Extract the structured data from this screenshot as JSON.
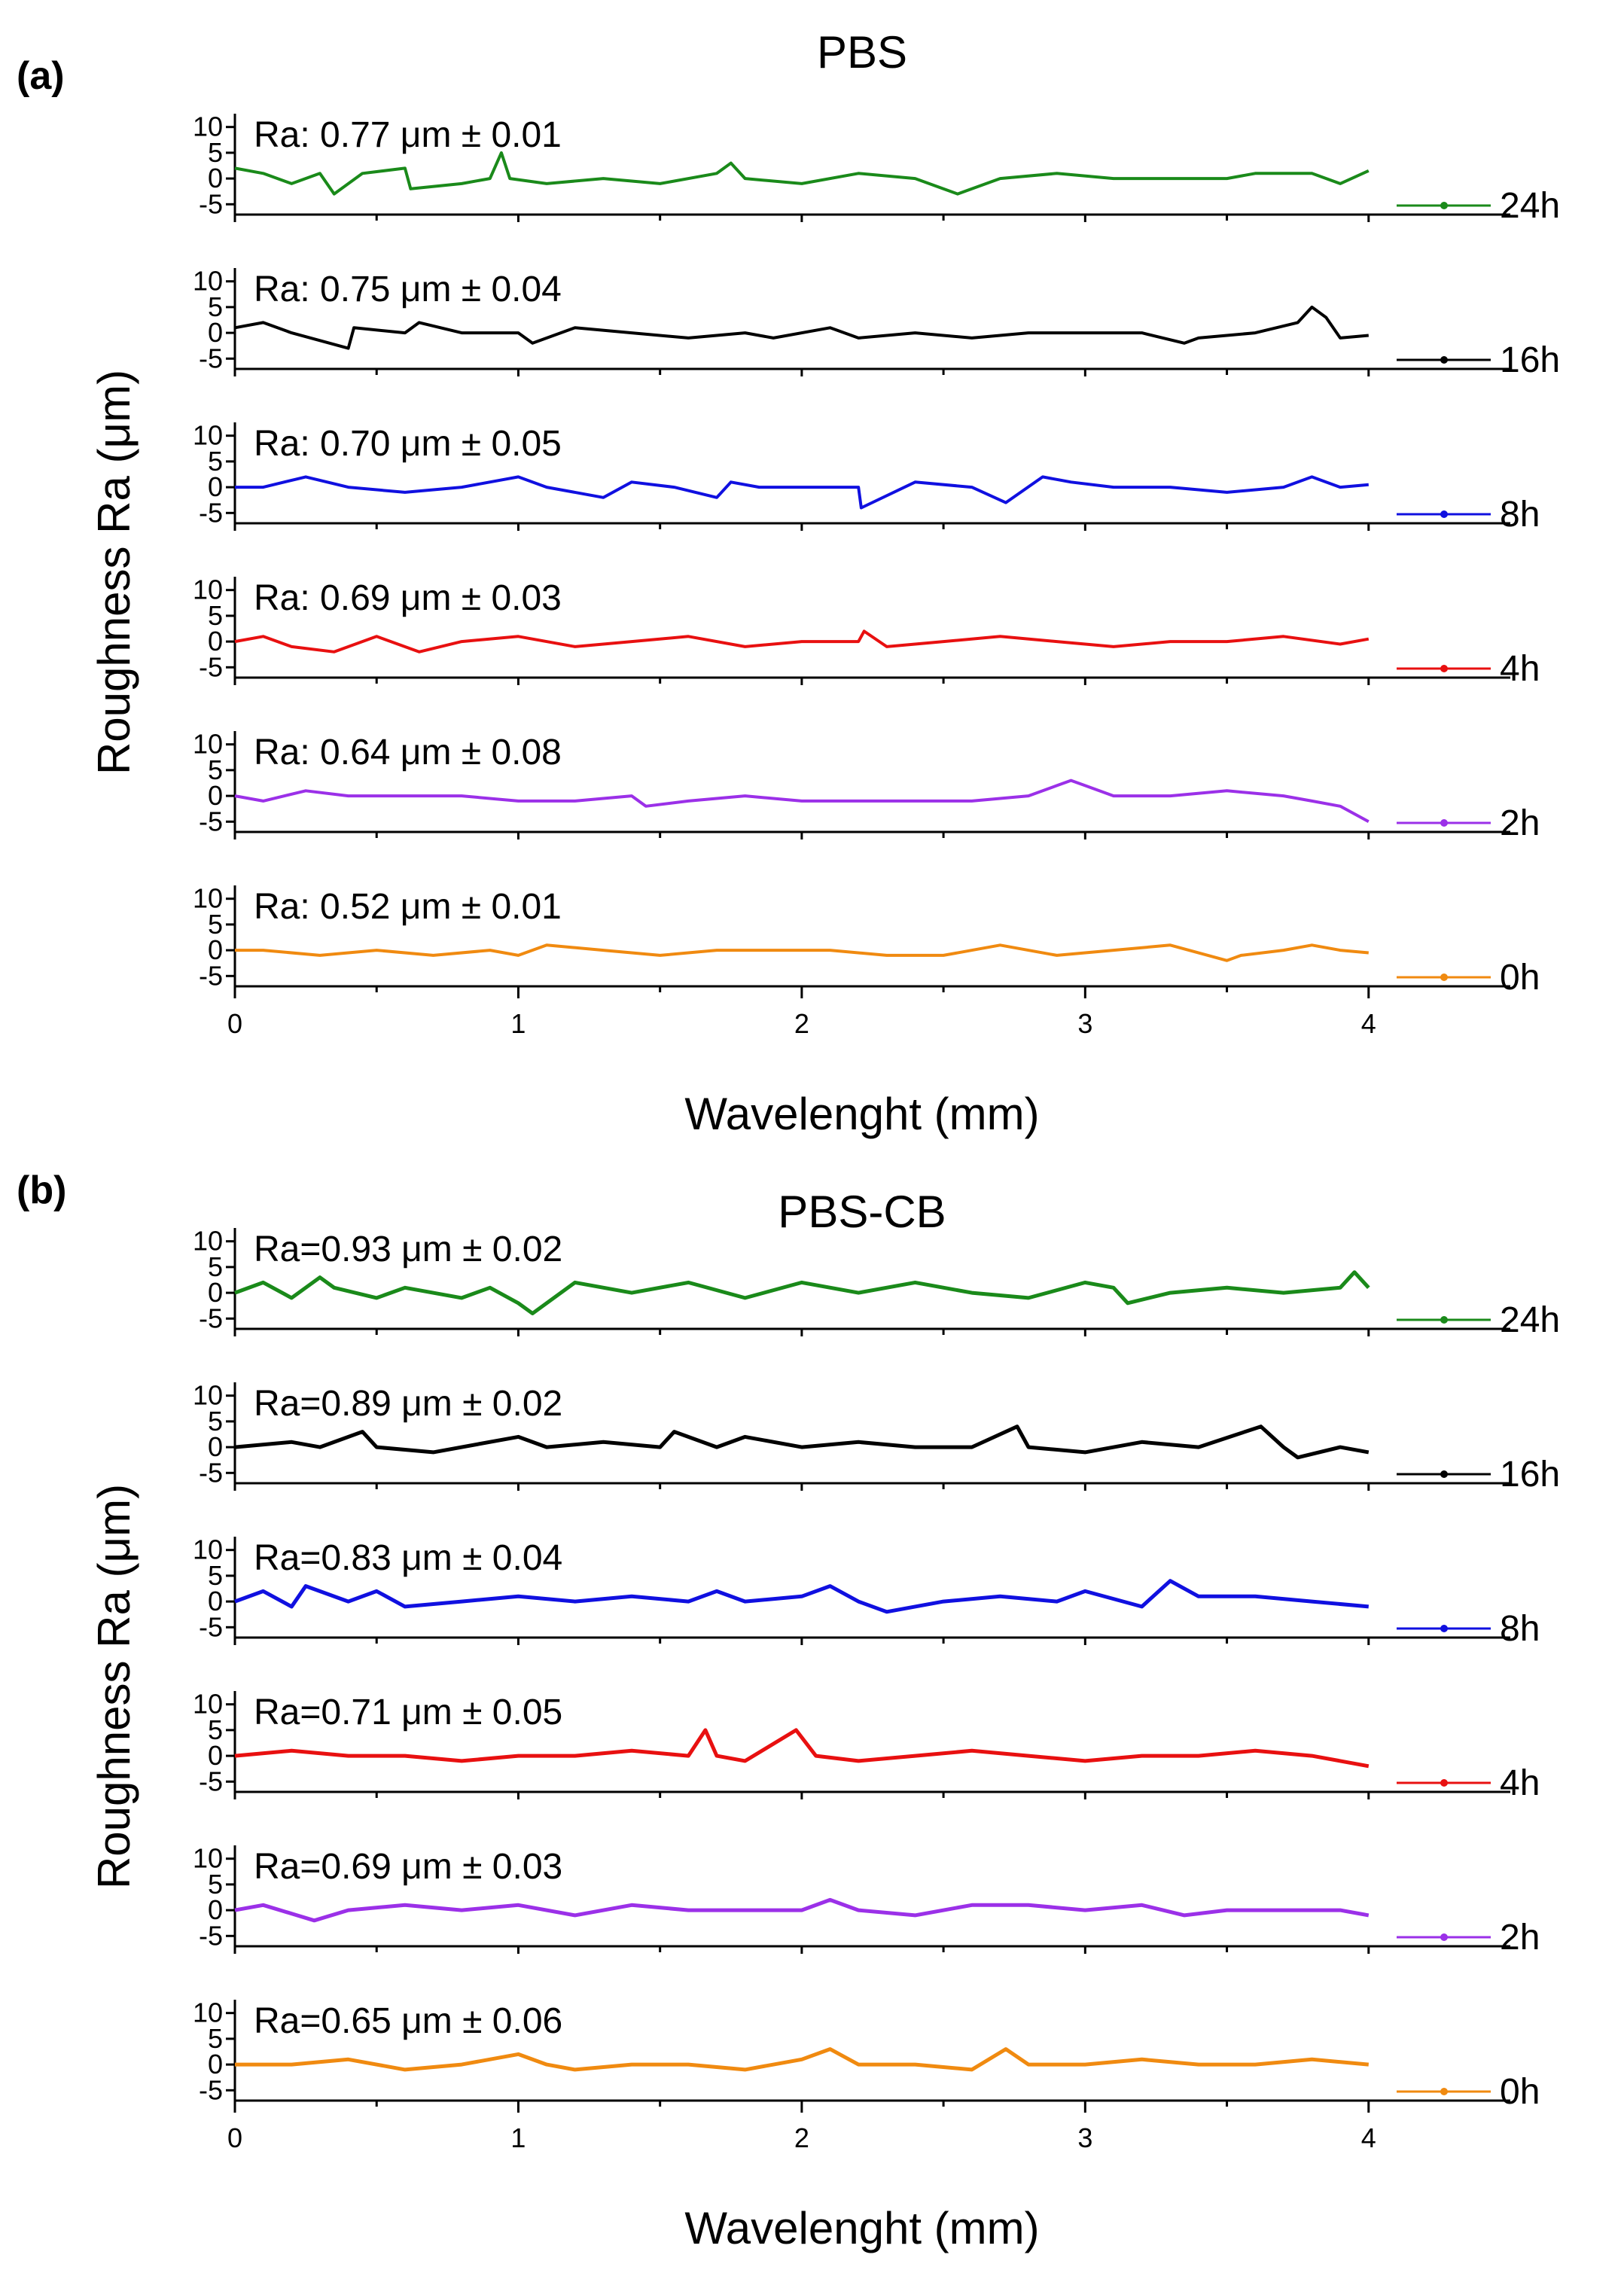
{
  "chart_data": [
    {
      "type": "line",
      "panel_label": "(a)",
      "title": "PBS",
      "xlabel": "Wavelenght (mm)",
      "ylabel": "Roughness Ra (μm)",
      "xlim": [
        0,
        4.5
      ],
      "x_ticks": [
        "0",
        "1",
        "2",
        "3",
        "4"
      ],
      "ylim": [
        -7,
        12
      ],
      "y_ticks": [
        "10",
        "5",
        "0",
        "-5"
      ],
      "series": [
        {
          "name": "24h",
          "ra_label": "Ra: 0.77 μm ± 0.01",
          "color": "#1a8a1a",
          "x": [
            0,
            0.1,
            0.2,
            0.3,
            0.35,
            0.45,
            0.6,
            0.62,
            0.8,
            0.9,
            0.94,
            0.97,
            1.1,
            1.3,
            1.5,
            1.7,
            1.75,
            1.8,
            2.0,
            2.2,
            2.4,
            2.55,
            2.7,
            2.9,
            3.1,
            3.3,
            3.5,
            3.6,
            3.8,
            3.9,
            4.0
          ],
          "y": [
            2,
            1,
            -1,
            1,
            -3,
            1,
            2,
            -2,
            -1,
            0,
            5,
            0,
            -1,
            0,
            -1,
            1,
            3,
            0,
            -1,
            1,
            0,
            -3,
            0,
            1,
            0,
            0,
            0,
            1,
            1,
            -1,
            1.5
          ]
        },
        {
          "name": "16h",
          "ra_label": "Ra: 0.75 μm ± 0.04",
          "color": "#000000",
          "x": [
            0,
            0.1,
            0.2,
            0.4,
            0.42,
            0.6,
            0.65,
            0.8,
            1.0,
            1.05,
            1.2,
            1.4,
            1.6,
            1.8,
            1.9,
            2.1,
            2.2,
            2.4,
            2.6,
            2.8,
            3.0,
            3.2,
            3.35,
            3.4,
            3.6,
            3.75,
            3.8,
            3.85,
            3.9,
            4.0
          ],
          "y": [
            1,
            2,
            0,
            -3,
            1,
            0,
            2,
            0,
            0,
            -2,
            1,
            0,
            -1,
            0,
            -1,
            1,
            -1,
            0,
            -1,
            0,
            0,
            0,
            -2,
            -1,
            0,
            2,
            5,
            3,
            -1,
            -0.5
          ]
        },
        {
          "name": "8h",
          "ra_label": "Ra: 0.70 μm ± 0.05",
          "color": "#1010e0",
          "x": [
            0,
            0.1,
            0.25,
            0.4,
            0.6,
            0.8,
            1.0,
            1.1,
            1.3,
            1.4,
            1.55,
            1.7,
            1.75,
            1.85,
            2.0,
            2.2,
            2.21,
            2.4,
            2.6,
            2.72,
            2.85,
            2.95,
            3.1,
            3.3,
            3.5,
            3.7,
            3.8,
            3.9,
            4.0
          ],
          "y": [
            0,
            0,
            2,
            0,
            -1,
            0,
            2,
            0,
            -2,
            1,
            0,
            -2,
            1,
            0,
            0,
            0,
            -4,
            1,
            0,
            -3,
            2,
            1,
            0,
            0,
            -1,
            0,
            2,
            0,
            0.5
          ]
        },
        {
          "name": "4h",
          "ra_label": "Ra: 0.69 μm ± 0.03",
          "color": "#e81010",
          "x": [
            0,
            0.1,
            0.2,
            0.35,
            0.5,
            0.65,
            0.8,
            1.0,
            1.2,
            1.4,
            1.6,
            1.8,
            2.0,
            2.2,
            2.22,
            2.3,
            2.5,
            2.7,
            2.9,
            3.1,
            3.3,
            3.5,
            3.7,
            3.9,
            4.0
          ],
          "y": [
            0,
            1,
            -1,
            -2,
            1,
            -2,
            0,
            1,
            -1,
            0,
            1,
            -1,
            0,
            0,
            2,
            -1,
            0,
            1,
            0,
            -1,
            0,
            0,
            1,
            -0.5,
            0.5
          ]
        },
        {
          "name": "2h",
          "ra_label": "Ra: 0.64 μm ± 0.08",
          "color": "#9b30e8",
          "x": [
            0,
            0.1,
            0.25,
            0.4,
            0.6,
            0.8,
            1.0,
            1.2,
            1.4,
            1.45,
            1.6,
            1.8,
            2.0,
            2.2,
            2.4,
            2.6,
            2.8,
            2.9,
            2.95,
            3.0,
            3.1,
            3.3,
            3.5,
            3.7,
            3.8,
            3.9,
            4.0
          ],
          "y": [
            0,
            -1,
            1,
            0,
            0,
            0,
            -1,
            -1,
            0,
            -2,
            -1,
            0,
            -1,
            -1,
            -1,
            -1,
            0,
            2,
            3,
            2,
            0,
            0,
            1,
            0,
            -1,
            -2,
            -5
          ]
        },
        {
          "name": "0h",
          "ra_label": "Ra: 0.52 μm ± 0.01",
          "color": "#f08a10",
          "x": [
            0,
            0.1,
            0.3,
            0.5,
            0.7,
            0.9,
            1.0,
            1.1,
            1.3,
            1.5,
            1.7,
            1.9,
            2.1,
            2.3,
            2.5,
            2.7,
            2.9,
            3.1,
            3.3,
            3.5,
            3.55,
            3.7,
            3.8,
            3.9,
            4.0
          ],
          "y": [
            0,
            0,
            -1,
            0,
            -1,
            0,
            -1,
            1,
            0,
            -1,
            0,
            0,
            0,
            -1,
            -1,
            1,
            -1,
            0,
            1,
            -2,
            -1,
            0,
            1,
            0,
            -0.5
          ]
        }
      ],
      "legend_placement": "right"
    },
    {
      "type": "line",
      "panel_label": "(b)",
      "title": "PBS-CB",
      "xlabel": "Wavelenght (mm)",
      "ylabel": "Roughness Ra (μm)",
      "xlim": [
        0,
        4.5
      ],
      "x_ticks": [
        "0",
        "1",
        "2",
        "3",
        "4"
      ],
      "ylim": [
        -7,
        12
      ],
      "y_ticks": [
        "10",
        "5",
        "0",
        "-5"
      ],
      "series": [
        {
          "name": "24h",
          "ra_label": "Ra=0.93 μm ± 0.02",
          "color": "#1a8a1a",
          "x": [
            0,
            0.1,
            0.2,
            0.3,
            0.35,
            0.5,
            0.6,
            0.8,
            0.9,
            1.0,
            1.05,
            1.2,
            1.4,
            1.6,
            1.8,
            2.0,
            2.2,
            2.4,
            2.6,
            2.8,
            3.0,
            3.1,
            3.15,
            3.3,
            3.5,
            3.7,
            3.9,
            3.95,
            4.0
          ],
          "y": [
            0,
            2,
            -1,
            3,
            1,
            -1,
            1,
            -1,
            1,
            -2,
            -4,
            2,
            0,
            2,
            -1,
            2,
            0,
            2,
            0,
            -1,
            2,
            1,
            -2,
            0,
            1,
            0,
            1,
            4,
            1
          ]
        },
        {
          "name": "16h",
          "ra_label": "Ra=0.89 μm ± 0.02",
          "color": "#000000",
          "x": [
            0,
            0.2,
            0.3,
            0.45,
            0.5,
            0.7,
            1.0,
            1.1,
            1.3,
            1.5,
            1.55,
            1.7,
            1.8,
            2.0,
            2.2,
            2.4,
            2.6,
            2.76,
            2.8,
            3.0,
            3.2,
            3.4,
            3.62,
            3.7,
            3.75,
            3.9,
            4.0
          ],
          "y": [
            0,
            1,
            0,
            3,
            0,
            -1,
            2,
            0,
            1,
            0,
            3,
            0,
            2,
            0,
            1,
            0,
            0,
            4,
            0,
            -1,
            1,
            0,
            4,
            0,
            -2,
            0,
            -1
          ]
        },
        {
          "name": "8h",
          "ra_label": "Ra=0.83 μm ± 0.04",
          "color": "#1010e0",
          "x": [
            0,
            0.1,
            0.2,
            0.25,
            0.4,
            0.5,
            0.6,
            0.8,
            1.0,
            1.2,
            1.4,
            1.6,
            1.7,
            1.8,
            2.0,
            2.1,
            2.2,
            2.3,
            2.5,
            2.7,
            2.9,
            3.0,
            3.2,
            3.3,
            3.4,
            3.6,
            3.8,
            4.0
          ],
          "y": [
            0,
            2,
            -1,
            3,
            0,
            2,
            -1,
            0,
            1,
            0,
            1,
            0,
            2,
            0,
            1,
            3,
            0,
            -2,
            0,
            1,
            0,
            2,
            -1,
            4,
            1,
            1,
            0,
            -1
          ]
        },
        {
          "name": "4h",
          "ra_label": "Ra=0.71 μm ± 0.05",
          "color": "#e81010",
          "x": [
            0,
            0.2,
            0.4,
            0.6,
            0.8,
            1.0,
            1.2,
            1.4,
            1.6,
            1.66,
            1.7,
            1.8,
            1.98,
            2.05,
            2.2,
            2.4,
            2.6,
            2.8,
            3.0,
            3.2,
            3.4,
            3.6,
            3.8,
            3.9,
            4.0
          ],
          "y": [
            0,
            1,
            0,
            0,
            -1,
            0,
            0,
            1,
            0,
            5,
            0,
            -1,
            5,
            0,
            -1,
            0,
            1,
            0,
            -1,
            0,
            0,
            1,
            0,
            -1,
            -2
          ]
        },
        {
          "name": "2h",
          "ra_label": "Ra=0.69 μm ± 0.03",
          "color": "#9b30e8",
          "x": [
            0,
            0.1,
            0.28,
            0.4,
            0.6,
            0.8,
            1.0,
            1.2,
            1.4,
            1.6,
            1.8,
            2.0,
            2.1,
            2.2,
            2.4,
            2.6,
            2.8,
            3.0,
            3.2,
            3.35,
            3.5,
            3.7,
            3.9,
            4.0
          ],
          "y": [
            0,
            1,
            -2,
            0,
            1,
            0,
            1,
            -1,
            1,
            0,
            0,
            0,
            2,
            0,
            -1,
            1,
            1,
            0,
            1,
            -1,
            0,
            0,
            0,
            -1
          ]
        },
        {
          "name": "0h",
          "ra_label": "Ra=0.65 μm ± 0.06",
          "color": "#f08a10",
          "x": [
            0,
            0.2,
            0.4,
            0.6,
            0.8,
            1.0,
            1.1,
            1.2,
            1.4,
            1.6,
            1.8,
            2.0,
            2.1,
            2.2,
            2.4,
            2.6,
            2.72,
            2.8,
            3.0,
            3.2,
            3.4,
            3.6,
            3.8,
            4.0
          ],
          "y": [
            0,
            0,
            1,
            -1,
            0,
            2,
            0,
            -1,
            0,
            0,
            -1,
            1,
            3,
            0,
            0,
            -1,
            3,
            0,
            0,
            1,
            0,
            0,
            1,
            0
          ]
        }
      ],
      "legend_placement": "right"
    }
  ]
}
